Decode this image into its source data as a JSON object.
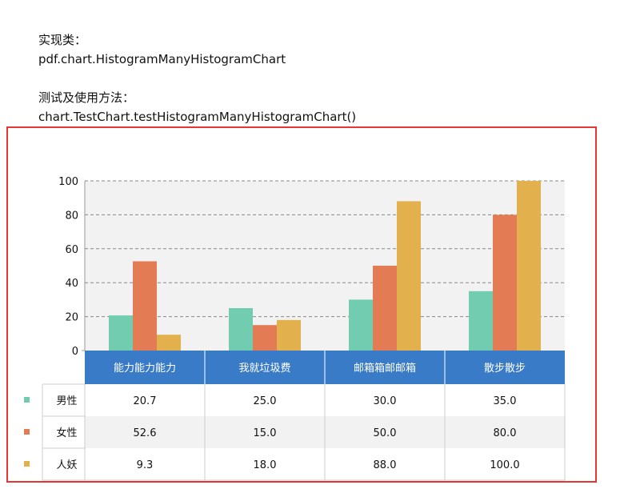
{
  "doc": {
    "impl_label": "实现类：",
    "impl_class": "pdf.chart.HistogramManyHistogramChart",
    "test_label": "测试及使用方法：",
    "test_method": "chart.TestChart.testHistogramManyHistogramChart()"
  },
  "colors": {
    "frame": "#e53535",
    "plot_bg": "#f2f2f2",
    "header_bg": "#3a7bc8",
    "grid": "#888888",
    "alt_row": "#f2f2f2",
    "series": [
      "#72ccb0",
      "#e37b55",
      "#e2b04c"
    ]
  },
  "chart_data": {
    "type": "bar",
    "categories": [
      "能力能力能力",
      "我就垃圾费",
      "邮箱箱邮邮箱",
      "散步散步"
    ],
    "series": [
      {
        "name": "男性",
        "values": [
          20.7,
          25.0,
          30.0,
          35.0
        ]
      },
      {
        "name": "女性",
        "values": [
          52.6,
          15.0,
          50.0,
          80.0
        ]
      },
      {
        "name": "人妖",
        "values": [
          9.3,
          18.0,
          88.0,
          100.0
        ]
      }
    ],
    "value_labels": [
      [
        "20.7",
        "25.0",
        "30.0",
        "35.0"
      ],
      [
        "52.6",
        "15.0",
        "50.0",
        "80.0"
      ],
      [
        "9.3",
        "18.0",
        "88.0",
        "100.0"
      ]
    ],
    "yticks": [
      "0",
      "20",
      "40",
      "60",
      "80",
      "100"
    ],
    "ylim": [
      0,
      100
    ],
    "grid": true,
    "legend": "data-table-left"
  }
}
